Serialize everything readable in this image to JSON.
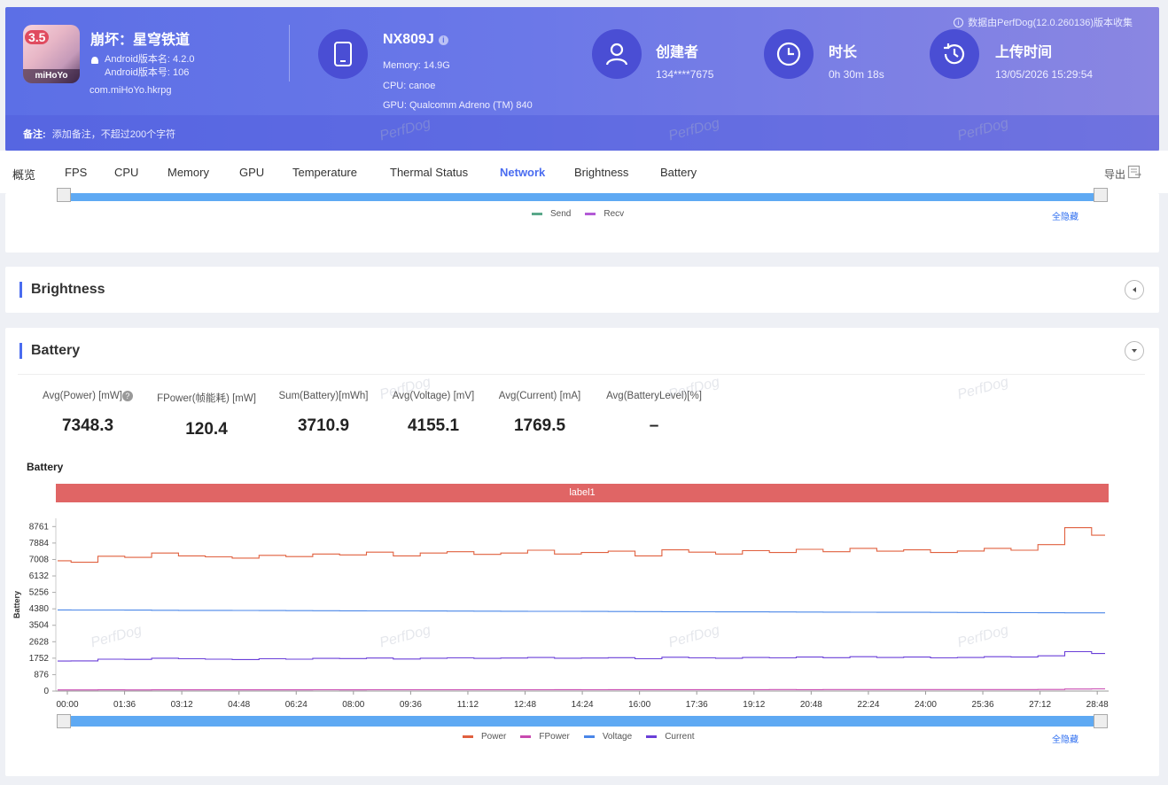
{
  "header": {
    "collect_note": "数据由PerfDog(12.0.260136)版本收集",
    "app": {
      "name": "崩坏：星穹铁道",
      "icon_badge": "3.5",
      "icon_logo": "miHoYo",
      "version_name": "Android版本名: 4.2.0",
      "version_code": "Android版本号: 106",
      "package": "com.miHoYo.hkrpg"
    },
    "device": {
      "name": "NX809J",
      "memory": "Memory: 14.9G",
      "cpu": "CPU: canoe",
      "gpu": "GPU: Qualcomm Adreno (TM) 840"
    },
    "creator": {
      "title": "创建者",
      "value": "134****7675"
    },
    "duration": {
      "title": "时长",
      "value": "0h 30m 18s"
    },
    "upload": {
      "title": "上传时间",
      "value": "13/05/2026 15:29:54"
    },
    "notes_label": "备注:",
    "notes_placeholder": "添加备注，不超过200个字符"
  },
  "tabs": [
    "概览",
    "FPS",
    "CPU",
    "Memory",
    "GPU",
    "Temperature",
    "Thermal Status",
    "Network",
    "Brightness",
    "Battery"
  ],
  "active_tab": "Network",
  "export_label": "导出",
  "network_panel": {
    "legend": [
      {
        "name": "Send",
        "color": "#5aa88a"
      },
      {
        "name": "Recv",
        "color": "#b35ad6"
      }
    ],
    "hide_all": "全隐藏"
  },
  "brightness_panel": {
    "title": "Brightness"
  },
  "battery_panel": {
    "title": "Battery",
    "metrics": [
      {
        "label": "Avg(Power) [mW]",
        "value": "7348.3",
        "help": "?"
      },
      {
        "label": "FPower(帧能耗) [mW]",
        "value": "120.4"
      },
      {
        "label": "Sum(Battery)[mWh]",
        "value": "3710.9"
      },
      {
        "label": "Avg(Voltage) [mV]",
        "value": "4155.1"
      },
      {
        "label": "Avg(Current) [mA]",
        "value": "1769.5"
      },
      {
        "label": "Avg(BatteryLevel)[%]",
        "value": "–"
      }
    ],
    "chart_title": "Battery",
    "label_bar": "label1",
    "hide_all": "全隐藏"
  },
  "watermark": "PerfDog",
  "chart_data": {
    "type": "line",
    "ylabel": "Battery",
    "yticks": [
      0,
      876,
      1752,
      2628,
      3504,
      4380,
      5256,
      6132,
      7008,
      7884,
      8761
    ],
    "ylim": [
      0,
      9200
    ],
    "xticks": [
      "00:00",
      "01:36",
      "03:12",
      "04:48",
      "06:24",
      "08:00",
      "09:36",
      "11:12",
      "12:48",
      "14:24",
      "16:00",
      "17:36",
      "19:12",
      "20:48",
      "22:24",
      "24:00",
      "25:36",
      "27:12",
      "28:48"
    ],
    "x_range_seconds": [
      0,
      1818
    ],
    "series": [
      {
        "name": "Power",
        "color": "#e0603f",
        "values": [
          6940,
          6860,
          7180,
          7120,
          7350,
          7200,
          7150,
          7080,
          7230,
          7160,
          7300,
          7250,
          7400,
          7200,
          7350,
          7420,
          7280,
          7350,
          7500,
          7300,
          7380,
          7450,
          7200,
          7520,
          7400,
          7300,
          7480,
          7380,
          7550,
          7420,
          7600,
          7450,
          7520,
          7380,
          7460,
          7600,
          7500,
          7800,
          8700,
          8300
        ]
      },
      {
        "name": "FPower",
        "color": "#c84ab0",
        "values": [
          60,
          62,
          65,
          63,
          66,
          64,
          67,
          65,
          68,
          66,
          70,
          68,
          69,
          71,
          70,
          72,
          71,
          73,
          72,
          74,
          73,
          75,
          74,
          76,
          75,
          77,
          76,
          78,
          77,
          79,
          78,
          80,
          79,
          81,
          80,
          82,
          81,
          83,
          110,
          120
        ]
      },
      {
        "name": "Voltage",
        "color": "#4a86e8",
        "values": [
          4320,
          4318,
          4315,
          4310,
          4305,
          4300,
          4296,
          4292,
          4288,
          4284,
          4280,
          4276,
          4272,
          4268,
          4264,
          4260,
          4256,
          4252,
          4248,
          4244,
          4240,
          4236,
          4232,
          4228,
          4224,
          4220,
          4216,
          4212,
          4208,
          4204,
          4200,
          4196,
          4192,
          4188,
          4184,
          4180,
          4176,
          4172,
          4168,
          4165
        ]
      },
      {
        "name": "Current",
        "color": "#6a3fd8",
        "values": [
          1600,
          1610,
          1700,
          1690,
          1750,
          1720,
          1700,
          1680,
          1720,
          1700,
          1740,
          1730,
          1760,
          1710,
          1750,
          1770,
          1740,
          1760,
          1790,
          1750,
          1760,
          1780,
          1720,
          1800,
          1770,
          1750,
          1790,
          1770,
          1810,
          1780,
          1830,
          1790,
          1810,
          1770,
          1790,
          1830,
          1810,
          1880,
          2100,
          2000
        ]
      }
    ]
  }
}
